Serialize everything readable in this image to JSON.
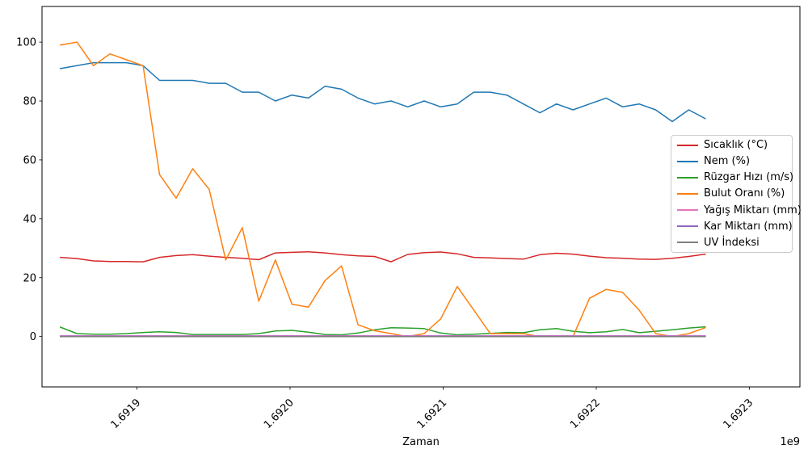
{
  "chart_data": {
    "type": "line",
    "title": "",
    "xlabel": "Zaman",
    "ylabel": "",
    "grid": false,
    "legend_position": "center right",
    "x_axis": {
      "offset_text": "1e9",
      "lim": [
        1691838000,
        1692333000
      ],
      "tick_values": [
        1691900000,
        1692000000,
        1692100000,
        1692200000,
        1692300000
      ],
      "tick_labels": [
        "1.6919",
        "1.6920",
        "1.6921",
        "1.6922",
        "1.6923"
      ],
      "tick_rotation": 45
    },
    "y_axis": {
      "lim": [
        -17.1,
        112.1
      ],
      "tick_values": [
        0,
        20,
        40,
        60,
        80,
        100
      ],
      "tick_labels": [
        "0",
        "20",
        "40",
        "60",
        "80",
        "100"
      ]
    },
    "x_start": 1691850000,
    "x_step": 10800,
    "series": [
      {
        "name": "Sıcaklık (°C)",
        "color": "#d62728",
        "values": [
          26.9,
          26.5,
          25.7,
          25.5,
          25.5,
          25.4,
          26.9,
          27.5,
          27.8,
          27.3,
          26.9,
          26.6,
          26.1,
          28.4,
          28.6,
          28.8,
          28.4,
          27.8,
          27.4,
          27.2,
          25.4,
          27.9,
          28.5,
          28.7,
          28.1,
          26.9,
          26.7,
          26.5,
          26.3,
          27.8,
          28.3,
          28.0,
          27.3,
          26.8,
          26.6,
          26.3,
          26.2,
          26.6,
          27.2,
          28.0
        ]
      },
      {
        "name": "Nem (%)",
        "color": "#1f77b4",
        "values": [
          91,
          92,
          93,
          93,
          93,
          92,
          87,
          87,
          87,
          86,
          86,
          83,
          83,
          80,
          82,
          81,
          85,
          84,
          81,
          79,
          80,
          78,
          80,
          78,
          79,
          83,
          83,
          82,
          79,
          76,
          79,
          77,
          79,
          81,
          78,
          79,
          77,
          73,
          77,
          74
        ]
      },
      {
        "name": "Rüzgar Hızı (m/s)",
        "color": "#2ca02c",
        "values": [
          3.2,
          1.0,
          0.8,
          0.8,
          1.0,
          1.4,
          1.6,
          1.4,
          0.7,
          0.7,
          0.7,
          0.7,
          1.0,
          1.9,
          2.1,
          1.5,
          0.7,
          0.6,
          1.2,
          2.3,
          3.0,
          2.9,
          2.7,
          1.2,
          0.6,
          0.8,
          1.1,
          1.4,
          1.3,
          2.3,
          2.7,
          1.8,
          1.3,
          1.6,
          2.4,
          1.3,
          1.8,
          2.3,
          2.9,
          3.3
        ]
      },
      {
        "name": "Bulut Oranı (%)",
        "color": "#ff7f0e",
        "values": [
          99,
          100,
          92,
          96,
          94,
          92,
          55,
          47,
          57,
          50,
          26,
          37,
          12,
          26,
          11,
          10,
          19,
          24,
          4,
          2,
          1,
          0,
          1,
          6,
          17,
          9,
          1,
          1,
          1,
          0,
          0,
          0,
          13,
          16,
          15,
          9,
          1,
          0,
          1,
          3
        ]
      },
      {
        "name": "Yağış Miktarı (mm)",
        "color": "#e377c2",
        "values": [
          0,
          0,
          0,
          0,
          0,
          0,
          0,
          0,
          0,
          0,
          0,
          0,
          0,
          0,
          0,
          0,
          0,
          0,
          0,
          0,
          0,
          0,
          0,
          0,
          0,
          0,
          0,
          0,
          0,
          0,
          0,
          0,
          0,
          0,
          0,
          0,
          0,
          0,
          0,
          0
        ]
      },
      {
        "name": "Kar Miktarı (mm)",
        "color": "#9467bd",
        "values": [
          0,
          0,
          0,
          0,
          0,
          0,
          0,
          0,
          0,
          0,
          0,
          0,
          0,
          0,
          0,
          0,
          0,
          0,
          0,
          0,
          0,
          0,
          0,
          0,
          0,
          0,
          0,
          0,
          0,
          0,
          0,
          0,
          0,
          0,
          0,
          0,
          0,
          0,
          0,
          0
        ]
      },
      {
        "name": "UV İndeksi",
        "color": "#7f7f7f",
        "values": [
          0,
          0,
          0,
          0,
          0,
          0,
          0,
          0,
          0,
          0,
          0,
          0,
          0,
          0,
          0,
          0,
          0,
          0,
          0,
          0,
          0,
          0,
          0,
          0,
          0,
          0,
          0,
          0,
          0,
          0,
          0,
          0,
          0,
          0,
          0,
          0,
          0,
          0,
          0,
          0
        ]
      }
    ]
  }
}
